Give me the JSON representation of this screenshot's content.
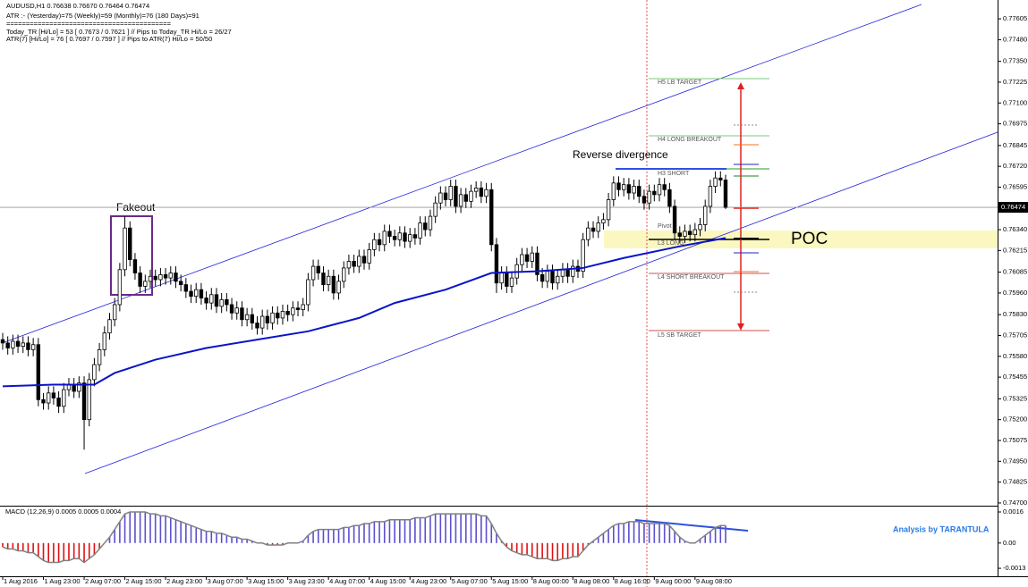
{
  "chart_data": {
    "type": "candlestick",
    "title": "AUDUSD,H1  0.76638 0.76670 0.76464 0.76474",
    "info": [
      "ATR :- (Yesterday)=75          (Weekly)=59          (Monthly)=76          (180 Days)=91",
      "==========================================",
      "Today_TR [Hi/Lo] = 53 [ 0.7673 / 0.7621 ]  // Pips to Today_TR Hi/Lo  = 26/27",
      "ATR(7)      [Hi/Lo] = 76 [ 0.7697 / 0.7597 ]  //  Pips to ATR(7) Hi/Lo      = 50/50"
    ],
    "ylim": [
      0.74689,
      0.77718
    ],
    "yticks": [
      0.77605,
      {
        "value": 0.7748,
        "label": "0.77480"
      },
      {
        "value": 0.7735,
        "label": "0.77350"
      },
      0.77225,
      {
        "value": 0.771,
        "label": "0.77100"
      },
      0.76975,
      0.76845,
      {
        "value": 0.7672,
        "label": "0.76720"
      },
      0.76595,
      {
        "value": 0.7634,
        "label": "0.76340"
      },
      0.76215,
      0.76085,
      {
        "value": 0.7596,
        "label": "0.75960"
      },
      {
        "value": 0.7583,
        "label": "0.75830"
      },
      0.75705,
      {
        "value": 0.7558,
        "label": "0.75580"
      },
      0.75455,
      0.75325,
      {
        "value": 0.752,
        "label": "0.75200"
      },
      0.75075,
      {
        "value": 0.7495,
        "label": "0.74950"
      },
      0.74825,
      {
        "value": 0.747,
        "label": "0.74700"
      }
    ],
    "xticks": [
      {
        "value": 0,
        "label": "1 Aug 2016"
      },
      {
        "value": 8,
        "label": "1 Aug 23:00"
      },
      {
        "value": 16,
        "label": "2 Aug 07:00"
      },
      {
        "value": 24,
        "label": "2 Aug 15:00"
      },
      {
        "value": 32,
        "label": "2 Aug 23:00"
      },
      {
        "value": 40,
        "label": "3 Aug 07:00"
      },
      {
        "value": 48,
        "label": "3 Aug 15:00"
      },
      {
        "value": 56,
        "label": "3 Aug 23:00"
      },
      {
        "value": 64,
        "label": "4 Aug 07:00"
      },
      {
        "value": 72,
        "label": "4 Aug 15:00"
      },
      {
        "value": 80,
        "label": "4 Aug 23:00"
      },
      {
        "value": 88,
        "label": "5 Aug 07:00"
      },
      {
        "value": 96,
        "label": "5 Aug 15:00"
      },
      {
        "value": 104,
        "label": "8 Aug 00:00"
      },
      {
        "value": 112,
        "label": "8 Aug 08:00"
      },
      {
        "value": 120,
        "label": "8 Aug 16:00"
      },
      {
        "value": 128,
        "label": "9 Aug 00:00"
      },
      {
        "value": 136,
        "label": "9 Aug 08:00"
      }
    ],
    "ohlc": [
      [
        0.7568,
        0.7572,
        0.7562,
        0.7566
      ],
      [
        0.7566,
        0.757,
        0.7559,
        0.7563
      ],
      [
        0.7563,
        0.7571,
        0.7559,
        0.7567
      ],
      [
        0.7567,
        0.7571,
        0.756,
        0.7564
      ],
      [
        0.7564,
        0.757,
        0.756,
        0.7566
      ],
      [
        0.7566,
        0.757,
        0.7558,
        0.7562
      ],
      [
        0.7562,
        0.7569,
        0.7558,
        0.7565
      ],
      [
        0.7565,
        0.7569,
        0.7528,
        0.7532
      ],
      [
        0.7532,
        0.7536,
        0.7526,
        0.753
      ],
      [
        0.753,
        0.754,
        0.7526,
        0.7536
      ],
      [
        0.7536,
        0.754,
        0.7529,
        0.7533
      ],
      [
        0.7533,
        0.7537,
        0.7524,
        0.7528
      ],
      [
        0.7528,
        0.7542,
        0.7524,
        0.7538
      ],
      [
        0.7538,
        0.7545,
        0.7534,
        0.7541
      ],
      [
        0.7541,
        0.7545,
        0.7533,
        0.7537
      ],
      [
        0.7537,
        0.7546,
        0.7533,
        0.7542
      ],
      [
        0.7542,
        0.7546,
        0.7502,
        0.752
      ],
      [
        0.752,
        0.7548,
        0.7516,
        0.7544
      ],
      [
        0.7544,
        0.7557,
        0.754,
        0.7553
      ],
      [
        0.7553,
        0.7566,
        0.7549,
        0.7562
      ],
      [
        0.7562,
        0.7576,
        0.7558,
        0.7572
      ],
      [
        0.7572,
        0.7584,
        0.7568,
        0.758
      ],
      [
        0.758,
        0.7593,
        0.7576,
        0.7589
      ],
      [
        0.7589,
        0.7614,
        0.7585,
        0.761
      ],
      [
        0.761,
        0.7642,
        0.7606,
        0.7635
      ],
      [
        0.7635,
        0.7639,
        0.7612,
        0.7616
      ],
      [
        0.7616,
        0.762,
        0.7604,
        0.7608
      ],
      [
        0.7608,
        0.7612,
        0.7596,
        0.76
      ],
      [
        0.76,
        0.7607,
        0.7596,
        0.7603
      ],
      [
        0.7603,
        0.761,
        0.7599,
        0.7606
      ],
      [
        0.7606,
        0.761,
        0.76,
        0.7604
      ],
      [
        0.7604,
        0.7611,
        0.76,
        0.7607
      ],
      [
        0.7607,
        0.7611,
        0.7601,
        0.7605
      ],
      [
        0.7605,
        0.7612,
        0.7601,
        0.7608
      ],
      [
        0.7608,
        0.7612,
        0.7599,
        0.7603
      ],
      [
        0.7603,
        0.7607,
        0.7597,
        0.7601
      ],
      [
        0.7601,
        0.7605,
        0.7593,
        0.7597
      ],
      [
        0.7597,
        0.7601,
        0.759,
        0.7594
      ],
      [
        0.7594,
        0.7602,
        0.759,
        0.7598
      ],
      [
        0.7598,
        0.7602,
        0.7589,
        0.7593
      ],
      [
        0.7593,
        0.7597,
        0.7586,
        0.759
      ],
      [
        0.759,
        0.7599,
        0.7586,
        0.7595
      ],
      [
        0.7595,
        0.7599,
        0.7584,
        0.7588
      ],
      [
        0.7588,
        0.7596,
        0.7584,
        0.7592
      ],
      [
        0.7592,
        0.7596,
        0.7585,
        0.7589
      ],
      [
        0.7589,
        0.7593,
        0.758,
        0.7584
      ],
      [
        0.7584,
        0.7591,
        0.758,
        0.7587
      ],
      [
        0.7587,
        0.7591,
        0.7576,
        0.758
      ],
      [
        0.758,
        0.7587,
        0.7576,
        0.7583
      ],
      [
        0.7583,
        0.7587,
        0.7574,
        0.7578
      ],
      [
        0.7578,
        0.7582,
        0.7571,
        0.7575
      ],
      [
        0.7575,
        0.7586,
        0.7571,
        0.7582
      ],
      [
        0.7582,
        0.7586,
        0.7574,
        0.7578
      ],
      [
        0.7578,
        0.7588,
        0.7574,
        0.7584
      ],
      [
        0.7584,
        0.7588,
        0.7577,
        0.7581
      ],
      [
        0.7581,
        0.7589,
        0.7577,
        0.7585
      ],
      [
        0.7585,
        0.7589,
        0.7579,
        0.7583
      ],
      [
        0.7583,
        0.7591,
        0.7579,
        0.7587
      ],
      [
        0.7587,
        0.7591,
        0.7582,
        0.7586
      ],
      [
        0.7586,
        0.7593,
        0.7582,
        0.7589
      ],
      [
        0.7589,
        0.7608,
        0.7585,
        0.7604
      ],
      [
        0.7604,
        0.7616,
        0.76,
        0.7612
      ],
      [
        0.7612,
        0.7616,
        0.7604,
        0.7608
      ],
      [
        0.7608,
        0.7612,
        0.7597,
        0.7601
      ],
      [
        0.7601,
        0.761,
        0.7597,
        0.7606
      ],
      [
        0.7606,
        0.761,
        0.7592,
        0.7596
      ],
      [
        0.7596,
        0.7607,
        0.7592,
        0.7603
      ],
      [
        0.7603,
        0.7615,
        0.7599,
        0.7611
      ],
      [
        0.7611,
        0.7619,
        0.7607,
        0.7615
      ],
      [
        0.7615,
        0.7619,
        0.7608,
        0.7612
      ],
      [
        0.7612,
        0.7622,
        0.7608,
        0.7618
      ],
      [
        0.7618,
        0.7622,
        0.761,
        0.7614
      ],
      [
        0.7614,
        0.7626,
        0.761,
        0.7622
      ],
      [
        0.7622,
        0.7632,
        0.7618,
        0.7628
      ],
      [
        0.7628,
        0.7632,
        0.7621,
        0.7625
      ],
      [
        0.7625,
        0.7637,
        0.7621,
        0.7633
      ],
      [
        0.7633,
        0.7637,
        0.7626,
        0.763
      ],
      [
        0.763,
        0.7634,
        0.7624,
        0.7628
      ],
      [
        0.7628,
        0.7636,
        0.7624,
        0.7632
      ],
      [
        0.7632,
        0.7636,
        0.7623,
        0.7627
      ],
      [
        0.7627,
        0.7635,
        0.7623,
        0.7631
      ],
      [
        0.7631,
        0.7635,
        0.7625,
        0.7629
      ],
      [
        0.7629,
        0.7642,
        0.7625,
        0.7638
      ],
      [
        0.7638,
        0.7642,
        0.763,
        0.7634
      ],
      [
        0.7634,
        0.7646,
        0.763,
        0.7642
      ],
      [
        0.7642,
        0.7654,
        0.7638,
        0.765
      ],
      [
        0.765,
        0.766,
        0.7646,
        0.7656
      ],
      [
        0.7656,
        0.766,
        0.7648,
        0.7652
      ],
      [
        0.7652,
        0.7664,
        0.7648,
        0.766
      ],
      [
        0.766,
        0.7664,
        0.7644,
        0.7648
      ],
      [
        0.7648,
        0.7659,
        0.7644,
        0.7655
      ],
      [
        0.7655,
        0.7659,
        0.7647,
        0.7651
      ],
      [
        0.7651,
        0.7661,
        0.7647,
        0.7657
      ],
      [
        0.7657,
        0.7663,
        0.7653,
        0.7659
      ],
      [
        0.7659,
        0.7663,
        0.765,
        0.7654
      ],
      [
        0.7654,
        0.7662,
        0.765,
        0.7658
      ],
      [
        0.7658,
        0.7662,
        0.7621,
        0.7625
      ],
      [
        0.7625,
        0.7629,
        0.7596,
        0.7602
      ],
      [
        0.7602,
        0.7612,
        0.7598,
        0.7608
      ],
      [
        0.7608,
        0.7612,
        0.7596,
        0.76
      ],
      [
        0.76,
        0.7609,
        0.7596,
        0.7605
      ],
      [
        0.7605,
        0.7617,
        0.7601,
        0.7613
      ],
      [
        0.7613,
        0.7623,
        0.7609,
        0.7619
      ],
      [
        0.7619,
        0.7623,
        0.7611,
        0.7615
      ],
      [
        0.7615,
        0.7624,
        0.7611,
        0.762
      ],
      [
        0.762,
        0.7624,
        0.7603,
        0.7607
      ],
      [
        0.7607,
        0.7611,
        0.7599,
        0.7603
      ],
      [
        0.7603,
        0.7613,
        0.7599,
        0.7609
      ],
      [
        0.7609,
        0.7613,
        0.7598,
        0.7602
      ],
      [
        0.7602,
        0.761,
        0.7598,
        0.7606
      ],
      [
        0.7606,
        0.7614,
        0.7602,
        0.761
      ],
      [
        0.761,
        0.7614,
        0.7602,
        0.7606
      ],
      [
        0.7606,
        0.7616,
        0.7602,
        0.7612
      ],
      [
        0.7612,
        0.7616,
        0.7605,
        0.7609
      ],
      [
        0.7609,
        0.7632,
        0.7605,
        0.7628
      ],
      [
        0.7628,
        0.7639,
        0.7624,
        0.7635
      ],
      [
        0.7635,
        0.7639,
        0.7629,
        0.7633
      ],
      [
        0.7633,
        0.7642,
        0.7629,
        0.7638
      ],
      [
        0.7638,
        0.7644,
        0.7634,
        0.764
      ],
      [
        0.764,
        0.7656,
        0.7636,
        0.7652
      ],
      [
        0.7652,
        0.7666,
        0.7648,
        0.7662
      ],
      [
        0.7662,
        0.7666,
        0.7654,
        0.7658
      ],
      [
        0.7658,
        0.7665,
        0.7654,
        0.7661
      ],
      [
        0.7661,
        0.7665,
        0.7652,
        0.7656
      ],
      [
        0.7656,
        0.7664,
        0.7652,
        0.766
      ],
      [
        0.766,
        0.7664,
        0.765,
        0.7654
      ],
      [
        0.7654,
        0.7658,
        0.7646,
        0.765
      ],
      [
        0.765,
        0.7661,
        0.7646,
        0.7657
      ],
      [
        0.7657,
        0.7661,
        0.7651,
        0.7655
      ],
      [
        0.7655,
        0.7665,
        0.7651,
        0.7661
      ],
      [
        0.7661,
        0.7665,
        0.7654,
        0.7658
      ],
      [
        0.7658,
        0.7662,
        0.7644,
        0.7648
      ],
      [
        0.7648,
        0.7652,
        0.7628,
        0.7632
      ],
      [
        0.7632,
        0.7636,
        0.7626,
        0.763
      ],
      [
        0.763,
        0.7637,
        0.7626,
        0.7633
      ],
      [
        0.7633,
        0.7637,
        0.7627,
        0.7631
      ],
      [
        0.7631,
        0.7638,
        0.7627,
        0.7634
      ],
      [
        0.7634,
        0.7641,
        0.763,
        0.7637
      ],
      [
        0.7637,
        0.7652,
        0.7633,
        0.7648
      ],
      [
        0.7648,
        0.7664,
        0.7644,
        0.766
      ],
      [
        0.766,
        0.7669,
        0.7656,
        0.7665
      ],
      [
        0.7665,
        0.7669,
        0.766,
        0.76638
      ],
      [
        0.76638,
        0.7667,
        0.76464,
        0.76474
      ]
    ],
    "ma": {
      "color": "#0a14c8",
      "x": [
        0,
        10,
        18,
        22,
        30,
        40,
        50,
        60,
        70,
        77,
        87,
        96,
        105,
        114,
        122,
        133,
        142
      ],
      "values": [
        0.754,
        0.7541,
        0.7541,
        0.7548,
        0.7556,
        0.7563,
        0.7568,
        0.7573,
        0.7581,
        0.759,
        0.7598,
        0.7608,
        0.7609,
        0.7611,
        0.7617,
        0.7624,
        0.7629
      ]
    },
    "macd": {
      "label": "MACD (12,26,9) 0.0005 0.0005 0.0004",
      "ylim": [
        -0.00171,
        0.00183
      ],
      "yticks": [
        0.0016,
        {
          "value": 0,
          "label": "0.00"
        },
        -0.0013
      ],
      "up_color": "#5b4fd0",
      "down_color": "#e01010",
      "line_color": "#808080",
      "values": [
        -0.0002,
        -0.0003,
        -0.0003,
        -0.0004,
        -0.0004,
        -0.0005,
        -0.0005,
        -0.0007,
        -0.0009,
        -0.001,
        -0.001,
        -0.001,
        -0.0009,
        -0.0009,
        -0.0008,
        -0.0008,
        -0.001,
        -0.0008,
        -0.0006,
        -0.0003,
        0,
        0.0003,
        0.0007,
        0.0011,
        0.0015,
        0.0016,
        0.0016,
        0.0016,
        0.0016,
        0.0015,
        0.0015,
        0.0014,
        0.0014,
        0.0013,
        0.0012,
        0.0011,
        0.001,
        0.0009,
        0.0008,
        0.0007,
        0.0006,
        0.0006,
        0.0005,
        0.0005,
        0.0004,
        0.0003,
        0.0003,
        0.0002,
        0.0002,
        0.0001,
        0,
        0,
        -0.0001,
        -0.0001,
        -0.0001,
        -0.0001,
        0,
        0,
        0,
        0.0001,
        0.0004,
        0.0006,
        0.0007,
        0.0007,
        0.0007,
        0.0007,
        0.0007,
        0.0008,
        0.0008,
        0.0009,
        0.0009,
        0.001,
        0.001,
        0.0011,
        0.0011,
        0.0011,
        0.0012,
        0.0012,
        0.0012,
        0.0012,
        0.0012,
        0.0013,
        0.0013,
        0.0013,
        0.0014,
        0.0015,
        0.0015,
        0.0015,
        0.0015,
        0.0015,
        0.0015,
        0.0015,
        0.0015,
        0.0015,
        0.0014,
        0.0014,
        0.001,
        0.0005,
        0.0001,
        -0.0002,
        -0.0004,
        -0.0005,
        -0.0006,
        -0.0006,
        -0.0007,
        -0.0008,
        -0.0008,
        -0.0008,
        -0.0009,
        -0.0009,
        -0.0008,
        -0.0008,
        -0.0007,
        -0.0007,
        -0.0004,
        -0.0001,
        0.0001,
        0.0003,
        0.0005,
        0.0007,
        0.0009,
        0.001,
        0.001,
        0.0011,
        0.0011,
        0.0011,
        0.001,
        0.001,
        0.001,
        0.001,
        0.001,
        0.0009,
        0.0006,
        0.0003,
        0.0001,
        0,
        0,
        0.0002,
        0.0004,
        0.0006,
        0.0008,
        0.0009,
        0.0009
      ]
    },
    "levels": [
      "H5 LB TARGET",
      "H4 LONG BREAKOUT",
      "H3 SHORT",
      "Pivot",
      "L3 LONG",
      "L4 SHORT BREAKOUT",
      "L5 SB TARGET"
    ],
    "annotations": {
      "fakeout": "Fakeout",
      "divergence": "Reverse divergence",
      "poc": "POC",
      "credit": "Analysis by TARANTULA"
    }
  }
}
